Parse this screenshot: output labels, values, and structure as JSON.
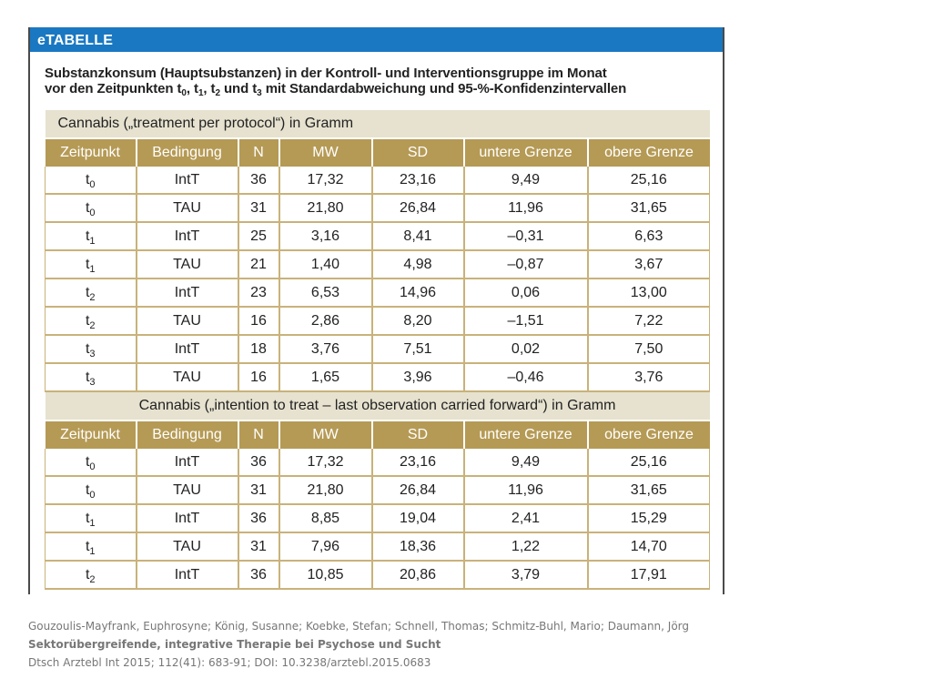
{
  "header": {
    "label": "eTABELLE"
  },
  "caption": {
    "line1": "Substanzkonsum (Hauptsubstanzen) in der Kontroll- und Interventionsgruppe im Monat",
    "line2_prefix": "vor den Zeitpunkten ",
    "t0": "t",
    "t0_sub": "0",
    "sep1": ", ",
    "t1": "t",
    "t1_sub": "1",
    "sep2": ", ",
    "t2": "t",
    "t2_sub": "2",
    "sep3": " und ",
    "t3": "t",
    "t3_sub": "3",
    "line2_suffix": " mit Standardabweichung und 95-%-Konfidenzintervallen"
  },
  "columns": [
    "Zeitpunkt",
    "Bedingung",
    "N",
    "MW",
    "SD",
    "untere Grenze",
    "obere Grenze"
  ],
  "section1": {
    "title": "Cannabis („treatment per protocol“) in Gramm",
    "rows": [
      {
        "t": "t",
        "sub": "0",
        "cond": "IntT",
        "n": "36",
        "mw": "17,32",
        "sd": "23,16",
        "lo": "9,49",
        "hi": "25,16"
      },
      {
        "t": "t",
        "sub": "0",
        "cond": "TAU",
        "n": "31",
        "mw": "21,80",
        "sd": "26,84",
        "lo": "11,96",
        "hi": "31,65"
      },
      {
        "t": "t",
        "sub": "1",
        "cond": "IntT",
        "n": "25",
        "mw": "3,16",
        "sd": "8,41",
        "lo": "–0,31",
        "hi": "6,63"
      },
      {
        "t": "t",
        "sub": "1",
        "cond": "TAU",
        "n": "21",
        "mw": "1,40",
        "sd": "4,98",
        "lo": "–0,87",
        "hi": "3,67"
      },
      {
        "t": "t",
        "sub": "2",
        "cond": "IntT",
        "n": "23",
        "mw": "6,53",
        "sd": "14,96",
        "lo": "0,06",
        "hi": "13,00"
      },
      {
        "t": "t",
        "sub": "2",
        "cond": "TAU",
        "n": "16",
        "mw": "2,86",
        "sd": "8,20",
        "lo": "–1,51",
        "hi": "7,22"
      },
      {
        "t": "t",
        "sub": "3",
        "cond": "IntT",
        "n": "18",
        "mw": "3,76",
        "sd": "7,51",
        "lo": "0,02",
        "hi": "7,50"
      },
      {
        "t": "t",
        "sub": "3",
        "cond": "TAU",
        "n": "16",
        "mw": "1,65",
        "sd": "3,96",
        "lo": "–0,46",
        "hi": "3,76"
      }
    ]
  },
  "section2": {
    "title": "Cannabis („intention to treat – last observation carried forward“) in Gramm",
    "rows": [
      {
        "t": "t",
        "sub": "0",
        "cond": "IntT",
        "n": "36",
        "mw": "17,32",
        "sd": "23,16",
        "lo": "9,49",
        "hi": "25,16"
      },
      {
        "t": "t",
        "sub": "0",
        "cond": "TAU",
        "n": "31",
        "mw": "21,80",
        "sd": "26,84",
        "lo": "11,96",
        "hi": "31,65"
      },
      {
        "t": "t",
        "sub": "1",
        "cond": "IntT",
        "n": "36",
        "mw": "8,85",
        "sd": "19,04",
        "lo": "2,41",
        "hi": "15,29"
      },
      {
        "t": "t",
        "sub": "1",
        "cond": "TAU",
        "n": "31",
        "mw": "7,96",
        "sd": "18,36",
        "lo": "1,22",
        "hi": "14,70"
      },
      {
        "t": "t",
        "sub": "2",
        "cond": "IntT",
        "n": "36",
        "mw": "10,85",
        "sd": "20,86",
        "lo": "3,79",
        "hi": "17,91"
      }
    ]
  },
  "citation": {
    "authors": "Gouzoulis-Mayfrank, Euphrosyne; König, Susanne; Koebke, Stefan; Schnell, Thomas; Schmitz-Buhl, Mario; Daumann, Jörg",
    "title": "Sektorübergreifende, integrative Therapie bei Psychose und Sucht",
    "source": "Dtsch Arztebl Int 2015; 112(41): 683-91; DOI: 10.3238/arztebl.2015.0683"
  }
}
